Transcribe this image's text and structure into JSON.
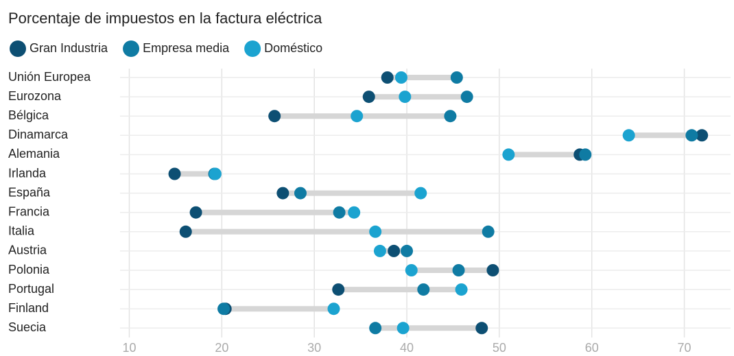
{
  "chart_data": {
    "type": "dot",
    "title": "Porcentaje de impuestos en la factura eléctrica",
    "categories": [
      "Unión Europea",
      "Eurozona",
      "Bélgica",
      "Dinamarca",
      "Alemania",
      "Irlanda",
      "España",
      "Francia",
      "Italia",
      "Austria",
      "Polonia",
      "Portugal",
      "Finland",
      "Suecia"
    ],
    "series": [
      {
        "name": "Gran Industria",
        "color": "#0d4f73",
        "values": [
          37.9,
          35.9,
          25.7,
          71.9,
          58.7,
          14.9,
          26.6,
          17.2,
          16.1,
          38.6,
          49.3,
          32.6,
          20.4,
          48.1
        ]
      },
      {
        "name": "Empresa media",
        "color": "#0f7ba3",
        "values": [
          45.4,
          46.5,
          44.7,
          70.8,
          59.3,
          19.2,
          28.5,
          32.7,
          48.8,
          40.0,
          45.6,
          41.8,
          20.2,
          36.6
        ]
      },
      {
        "name": "Doméstico",
        "color": "#1ba3d0",
        "values": [
          39.4,
          39.8,
          34.6,
          64.0,
          51.0,
          19.3,
          41.5,
          34.3,
          36.6,
          37.1,
          40.5,
          45.9,
          32.1,
          39.6
        ]
      }
    ],
    "xlim": [
      9,
      75
    ],
    "xticks": [
      10,
      20,
      30,
      40,
      50,
      60,
      70
    ],
    "grid": true
  }
}
